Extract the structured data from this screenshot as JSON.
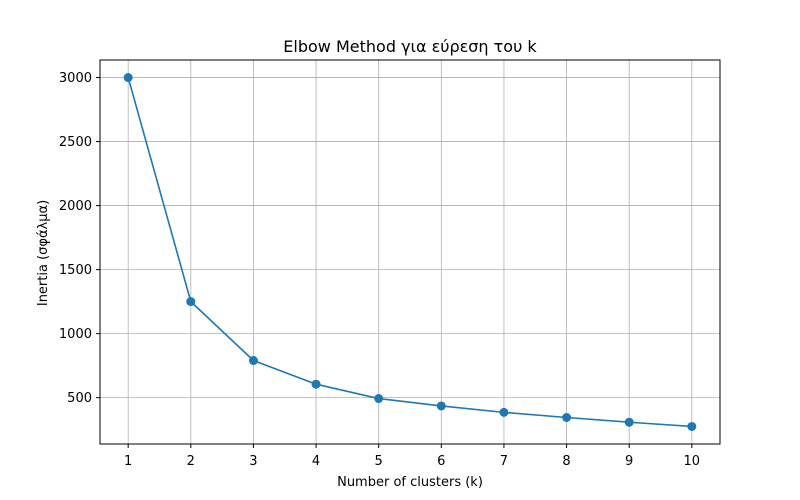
{
  "chart_data": {
    "type": "line",
    "title": "Elbow Method για εύρεση του k",
    "xlabel": "Number of clusters (k)",
    "ylabel": "Inertia (σφάλμα)",
    "x": [
      1,
      2,
      3,
      4,
      5,
      6,
      7,
      8,
      9,
      10
    ],
    "series": [
      {
        "values": [
          3000,
          1250,
          790,
          605,
          493,
          435,
          385,
          345,
          308,
          275
        ],
        "color": "#1f77b4",
        "marker": "circle"
      }
    ],
    "xticks": [
      "1",
      "2",
      "3",
      "4",
      "5",
      "6",
      "7",
      "8",
      "9",
      "10"
    ],
    "yticks": [
      "500",
      "1000",
      "1500",
      "2000",
      "2500",
      "3000"
    ],
    "ytick_values": [
      500,
      1000,
      1500,
      2000,
      2500,
      3000
    ],
    "xlim": [
      0.55,
      10.45
    ],
    "ylim": [
      138,
      3137
    ],
    "grid": true,
    "grid_color": "#b0b0b0",
    "legend": false
  }
}
